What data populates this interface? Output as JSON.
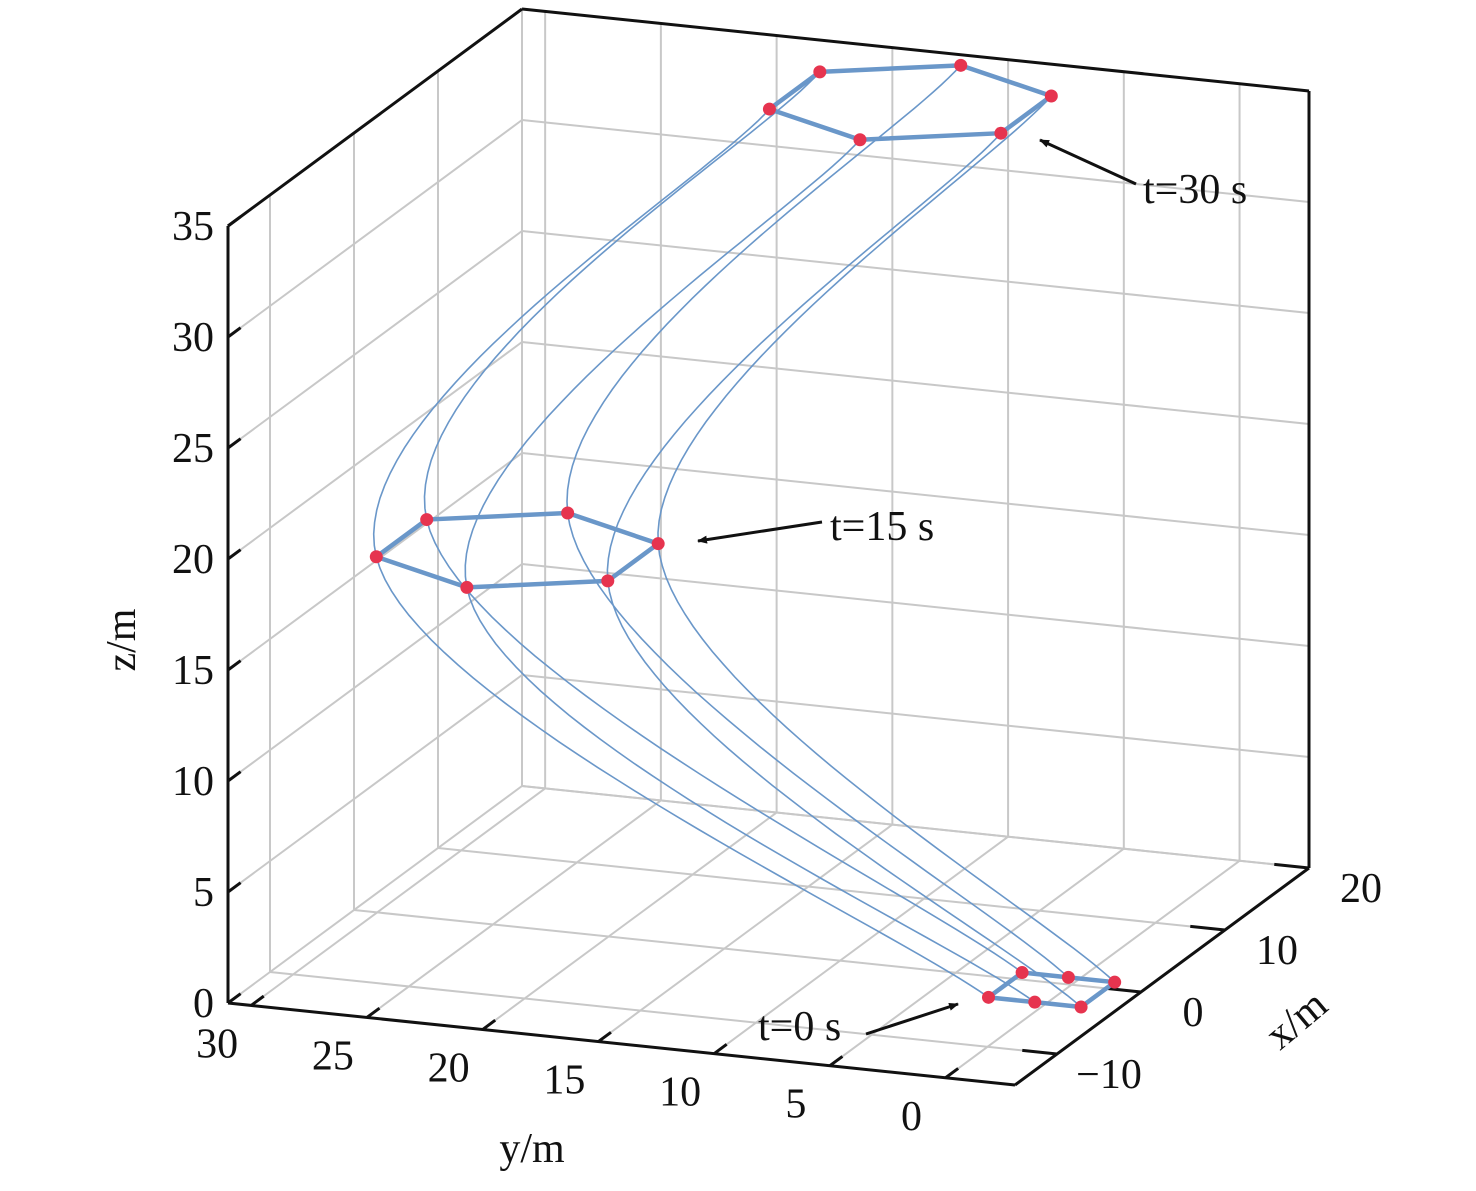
{
  "chart_data": {
    "type": "trajectory3d",
    "x_label": "x/m",
    "y_label": "y/m",
    "z_label": "z/m",
    "xlim": [
      -15,
      20
    ],
    "ylim": [
      -3,
      31
    ],
    "zlim": [
      0,
      35
    ],
    "xticks": [
      {
        "value": -10,
        "label": "−10"
      },
      0,
      10,
      20
    ],
    "yticks": [
      0,
      5,
      10,
      15,
      20,
      25,
      30
    ],
    "zticks": [
      0,
      5,
      10,
      15,
      20,
      25,
      30,
      35
    ],
    "grid": true,
    "line_color": "#6a97c9",
    "marker_color": "#e6344f",
    "t": [
      0,
      15,
      30
    ],
    "trajectories": [
      {
        "x": [
          -3,
          -12.5,
          9.5
        ],
        "y": [
          2.5,
          25.5,
          16.5
        ],
        "z": [
          0,
          20,
          35
        ]
      },
      {
        "x": [
          1,
          -6.5,
          15.5
        ],
        "y": [
          2.5,
          25.5,
          16.5
        ],
        "z": [
          0,
          20,
          35
        ]
      },
      {
        "x": [
          1,
          -3.5,
          18.5
        ],
        "y": [
          0.5,
          20.5,
          11.5
        ],
        "z": [
          0,
          20,
          35
        ]
      },
      {
        "x": [
          1,
          -6.5,
          15.5
        ],
        "y": [
          -1.5,
          15.5,
          6.5
        ],
        "z": [
          0,
          20,
          35
        ]
      },
      {
        "x": [
          -3,
          -12.5,
          9.5
        ],
        "y": [
          -1.5,
          15.5,
          6.5
        ],
        "z": [
          0,
          20,
          35
        ]
      },
      {
        "x": [
          -3,
          -15.5,
          6.5
        ],
        "y": [
          0.5,
          20.5,
          11.5
        ],
        "z": [
          0,
          20,
          35
        ]
      }
    ],
    "annotations": [
      {
        "text": "t=0 s"
      },
      {
        "text": "t=15 s"
      },
      {
        "text": "t=30 s"
      }
    ]
  }
}
